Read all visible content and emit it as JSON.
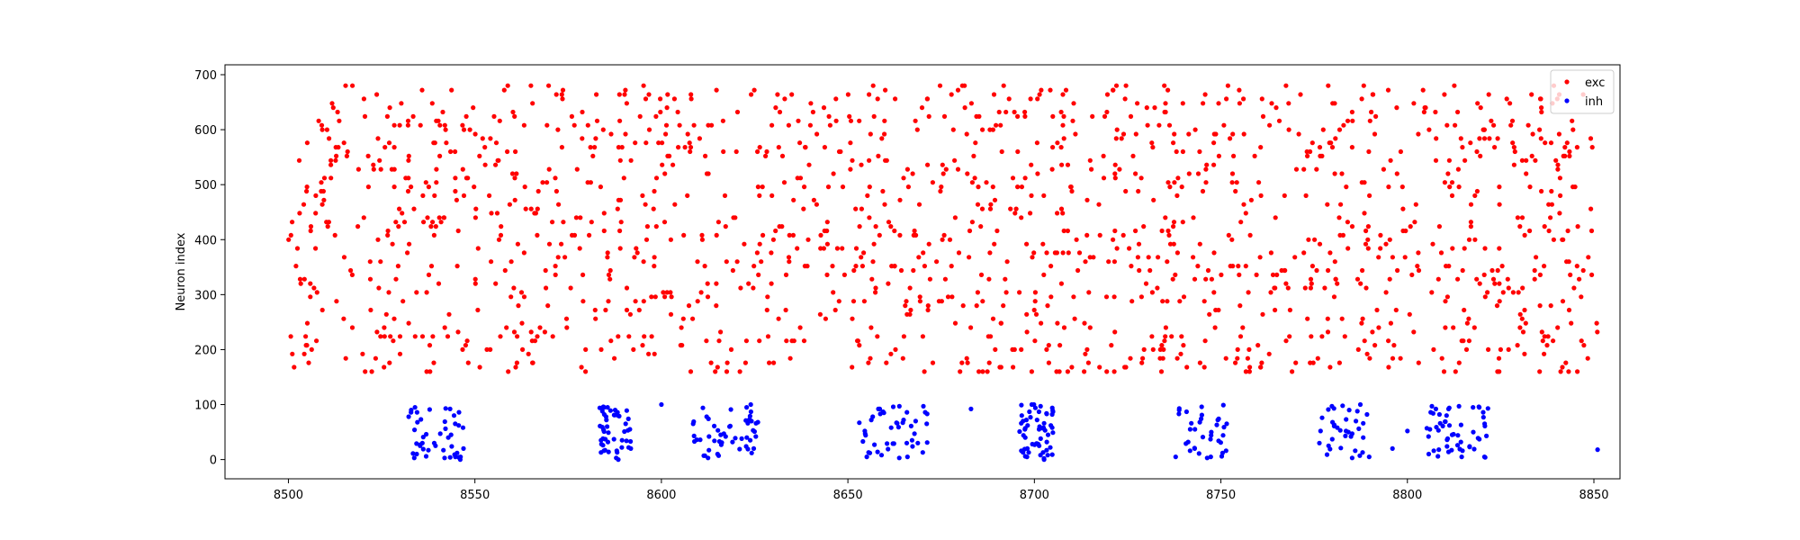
{
  "chart_data": {
    "type": "scatter",
    "title": "",
    "xlabel": "",
    "ylabel": "Neuron index",
    "xlim": [
      8483,
      8857
    ],
    "ylim": [
      -35,
      718
    ],
    "xticks": [
      8500,
      8550,
      8600,
      8650,
      8700,
      8750,
      8800,
      8850
    ],
    "yticks": [
      0,
      100,
      200,
      300,
      400,
      500,
      600,
      700
    ],
    "grid": false,
    "legend_position": "top-right",
    "series": [
      {
        "name": "exc",
        "color": "#ff0000",
        "neuron_range": [
          160,
          680
        ],
        "x_range": [
          8500,
          8851
        ]
      },
      {
        "name": "inh",
        "color": "#0000ff",
        "neuron_range": [
          0,
          100
        ],
        "bursts": [
          [
            8532,
            8547
          ],
          [
            8583,
            8592
          ],
          [
            8608,
            8626
          ],
          [
            8653,
            8672
          ],
          [
            8696,
            8705
          ],
          [
            8737,
            8752
          ],
          [
            8776,
            8790
          ],
          [
            8805,
            8822
          ]
        ],
        "isolated": [
          [
            8683,
            92
          ],
          [
            8600,
            100
          ],
          [
            8796,
            20
          ],
          [
            8800,
            52
          ],
          [
            8851,
            18
          ]
        ]
      }
    ]
  }
}
